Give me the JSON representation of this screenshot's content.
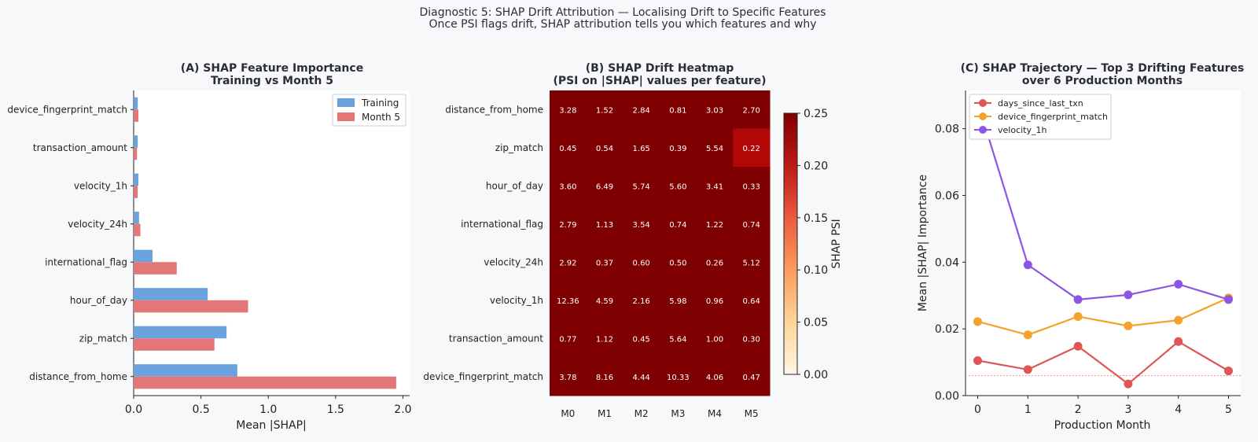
{
  "suptitle": "Diagnostic 5: SHAP Drift Attribution — Localising Drift to Specific Features",
  "subtitle": "Once PSI flags drift, SHAP attribution tells you which features and why",
  "colors": {
    "training": "#6aa2de",
    "month5": "#e37676",
    "days": "#dd5555",
    "device": "#f4a22a",
    "velocity": "#8b55e6",
    "text": "#2b2d3a"
  },
  "chart_data": [
    {
      "type": "bar",
      "title_line1": "(A) SHAP Feature Importance",
      "title_line2": "Training vs Month 5",
      "xlabel": "Mean |SHAP|",
      "xlim": [
        0,
        2.05
      ],
      "xticks": [
        "0.0",
        "0.5",
        "1.0",
        "1.5",
        "2.0"
      ],
      "categories": [
        "distance_from_home",
        "zip_match",
        "hour_of_day",
        "international_flag",
        "velocity_24h",
        "velocity_1h",
        "transaction_amount",
        "device_fingerprint_match"
      ],
      "series": [
        {
          "name": "Training",
          "values": [
            0.77,
            0.69,
            0.55,
            0.14,
            0.04,
            0.035,
            0.03,
            0.03
          ]
        },
        {
          "name": "Month 5",
          "values": [
            1.95,
            0.6,
            0.85,
            0.32,
            0.05,
            0.03,
            0.025,
            0.035
          ]
        }
      ],
      "legend_position": "top-right"
    },
    {
      "type": "heatmap",
      "title_line1": "(B) SHAP Drift Heatmap",
      "title_line2": "(PSI on |SHAP| values per feature)",
      "rows": [
        "distance_from_home",
        "zip_match",
        "hour_of_day",
        "international_flag",
        "velocity_24h",
        "velocity_1h",
        "transaction_amount",
        "device_fingerprint_match"
      ],
      "columns": [
        "M0",
        "M1",
        "M2",
        "M3",
        "M4",
        "M5"
      ],
      "values": [
        [
          "3.28",
          "1.52",
          "2.84",
          "0.81",
          "3.03",
          "2.70"
        ],
        [
          "0.45",
          "0.54",
          "1.65",
          "0.39",
          "5.54",
          "0.22"
        ],
        [
          "3.60",
          "6.49",
          "5.74",
          "5.60",
          "3.41",
          "0.33"
        ],
        [
          "2.79",
          "1.13",
          "3.54",
          "0.74",
          "1.22",
          "0.74"
        ],
        [
          "2.92",
          "0.37",
          "0.60",
          "0.50",
          "0.26",
          "5.12"
        ],
        [
          "12.36",
          "4.59",
          "2.16",
          "5.98",
          "0.96",
          "0.64"
        ],
        [
          "0.77",
          "1.12",
          "0.45",
          "5.64",
          "1.00",
          "0.30"
        ],
        [
          "3.78",
          "8.16",
          "4.44",
          "10.33",
          "4.06",
          "0.47"
        ]
      ],
      "colorbar": {
        "label": "SHAP PSI",
        "range": [
          0,
          0.25
        ],
        "ticks": [
          "0.00",
          "0.05",
          "0.10",
          "0.15",
          "0.20",
          "0.25"
        ]
      }
    },
    {
      "type": "line",
      "title_line1": "(C) SHAP Trajectory — Top 3 Drifting Features",
      "title_line2": "over 6 Production Months",
      "xlabel": "Production Month",
      "ylabel": "Mean |SHAP| Importance",
      "x": [
        0,
        1,
        2,
        3,
        4,
        5
      ],
      "xticks": [
        "0",
        "1",
        "2",
        "3",
        "4",
        "5"
      ],
      "ylim": [
        0,
        0.091
      ],
      "yticks": [
        "0.00",
        "0.02",
        "0.04",
        "0.06",
        "0.08"
      ],
      "threshold": 0.006,
      "series": [
        {
          "name": "days_since_last_txn",
          "values": [
            0.0105,
            0.0078,
            0.0148,
            0.0035,
            0.0162,
            0.0074
          ]
        },
        {
          "name": "device_fingerprint_match",
          "values": [
            0.0222,
            0.0182,
            0.0237,
            0.0209,
            0.0226,
            0.0293
          ]
        },
        {
          "name": "velocity_1h",
          "values": [
            0.088,
            0.0392,
            0.0288,
            0.0302,
            0.0334,
            0.0288
          ]
        }
      ],
      "legend_position": "top-left"
    }
  ]
}
